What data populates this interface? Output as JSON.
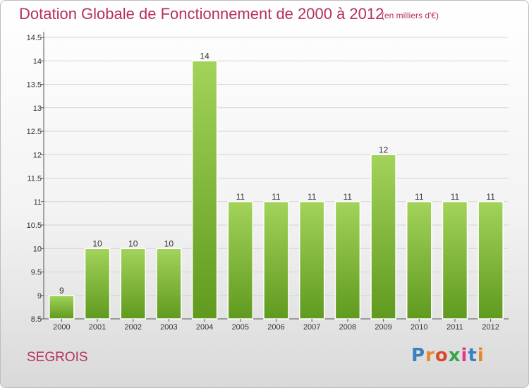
{
  "header": {
    "title": "Dotation Globale de Fonctionnement de 2000 à 2012",
    "subtitle": "(en milliers d'€)"
  },
  "footer": {
    "commune": "SEGROIS",
    "logo_text": "Proxiti",
    "logo_colors": [
      "#3a7fc1",
      "#e8862a",
      "#d84a2d",
      "#3aa34a",
      "#e03a8a",
      "#3a7fc1",
      "#e8862a"
    ]
  },
  "colors": {
    "title": "#b5305f",
    "bar_top": "#a3d35a",
    "bar_bottom": "#5f9a1e",
    "grid": "#d4d4d4",
    "axis": "#555555"
  },
  "chart_data": {
    "type": "bar",
    "categories": [
      "2000",
      "2001",
      "2002",
      "2003",
      "2004",
      "2005",
      "2006",
      "2007",
      "2008",
      "2009",
      "2010",
      "2011",
      "2012"
    ],
    "values": [
      9,
      10,
      10,
      10,
      14,
      11,
      11,
      11,
      11,
      12,
      11,
      11,
      11
    ],
    "data_labels": [
      "9",
      "10",
      "10",
      "10",
      "14",
      "11",
      "11",
      "11",
      "11",
      "12",
      "11",
      "11",
      "11"
    ],
    "ylim": [
      8.5,
      14.5
    ],
    "yticks": [
      8.5,
      9,
      9.5,
      10,
      10.5,
      11,
      11.5,
      12,
      12.5,
      13,
      13.5,
      14,
      14.5
    ],
    "ytick_labels": [
      "8.5",
      "9",
      "9.5",
      "10",
      "10.5",
      "11",
      "11.5",
      "12",
      "12.5",
      "13",
      "13.5",
      "14",
      "14.5"
    ],
    "grid": true
  }
}
